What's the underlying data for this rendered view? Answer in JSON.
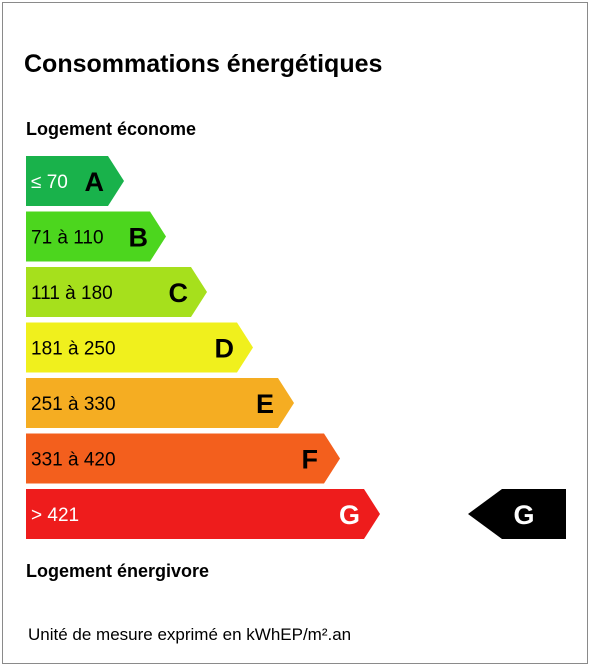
{
  "title": "Consommations énergétiques",
  "label_top": "Logement économe",
  "label_bottom": "Logement énergivore",
  "unit_note": "Unité de mesure exprimé en kWhEP/m².an",
  "chart_data": {
    "type": "bar",
    "title": "Consommations énergétiques",
    "categories": [
      "A",
      "B",
      "C",
      "D",
      "E",
      "F",
      "G"
    ],
    "ranges": [
      "≤ 70",
      "71 à 110",
      "111 à 180",
      "181 à 250",
      "251 à 330",
      "331 à 420",
      "> 421"
    ],
    "colors": [
      "#19b24b",
      "#4cd61e",
      "#a6e01c",
      "#f0f01d",
      "#f5ad22",
      "#f35f1d",
      "#ee1c1c"
    ],
    "range_text_colors": [
      "#ffffff",
      "#000000",
      "#000000",
      "#000000",
      "#000000",
      "#000000",
      "#ffffff"
    ],
    "letter_colors": [
      "#000000",
      "#000000",
      "#000000",
      "#000000",
      "#000000",
      "#000000",
      "#ffffff"
    ],
    "current_class": "G",
    "indicator_color": "#000000",
    "indicator_text_color": "#ffffff"
  }
}
